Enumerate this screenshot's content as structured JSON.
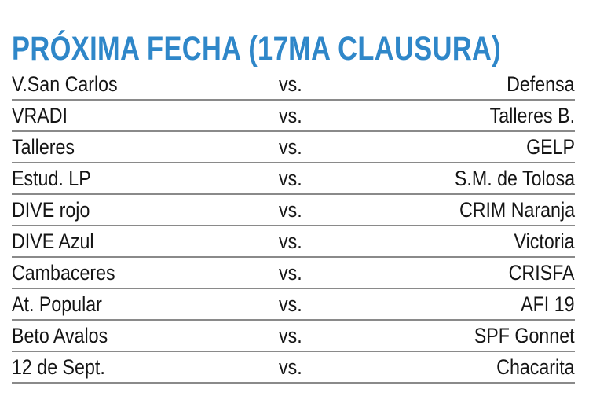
{
  "title": "PRÓXIMA FECHA (17MA CLAUSURA)",
  "colors": {
    "title": "#2f87c9",
    "text": "#151515",
    "divider": "#8a8a8a"
  },
  "matches": [
    {
      "home": "V.San Carlos",
      "vs": "vs.",
      "away": "Defensa"
    },
    {
      "home": "VRADI",
      "vs": "vs.",
      "away": "Talleres B."
    },
    {
      "home": "Talleres",
      "vs": "vs.",
      "away": "GELP"
    },
    {
      "home": "Estud. LP",
      "vs": "vs.",
      "away": "S.M. de Tolosa"
    },
    {
      "home": "DIVE rojo",
      "vs": "vs.",
      "away": "CRIM Naranja"
    },
    {
      "home": "DIVE Azul",
      "vs": "vs.",
      "away": "Victoria"
    },
    {
      "home": "Cambaceres",
      "vs": "vs.",
      "away": "CRISFA"
    },
    {
      "home": "At. Popular",
      "vs": "vs.",
      "away": "AFI 19"
    },
    {
      "home": "Beto Avalos",
      "vs": "vs.",
      "away": "SPF Gonnet"
    },
    {
      "home": "12 de Sept.",
      "vs": "vs.",
      "away": "Chacarita"
    }
  ]
}
